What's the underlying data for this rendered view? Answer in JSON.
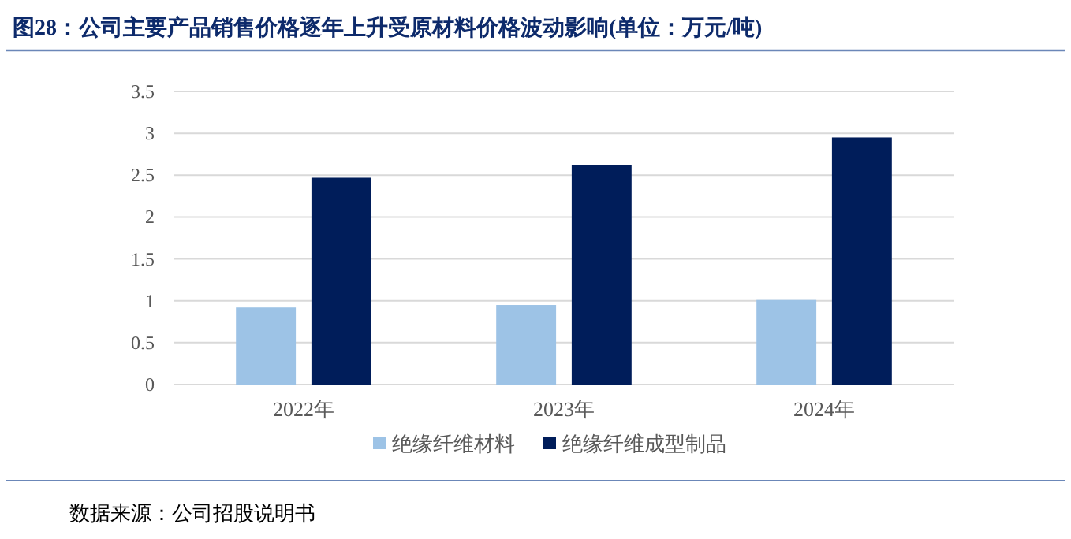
{
  "chart_data": {
    "type": "bar",
    "title": "图28：公司主要产品销售价格逐年上升受原材料价格波动影响(单位：万元/吨)",
    "categories": [
      "2022年",
      "2023年",
      "2024年"
    ],
    "series": [
      {
        "name": "绝缘纤维材料",
        "color": "#9dc3e6",
        "values": [
          0.92,
          0.95,
          1.01
        ]
      },
      {
        "name": "绝缘纤维成型制品",
        "color": "#001d5a",
        "values": [
          2.47,
          2.62,
          2.95
        ]
      }
    ],
    "ylim": [
      0,
      3.5
    ],
    "yticks": [
      0,
      0.5,
      1,
      1.5,
      2,
      2.5,
      3,
      3.5
    ],
    "grid": "y",
    "legend": "bottom",
    "annotations": [
      "数据来源：公司招股说明书"
    ]
  }
}
